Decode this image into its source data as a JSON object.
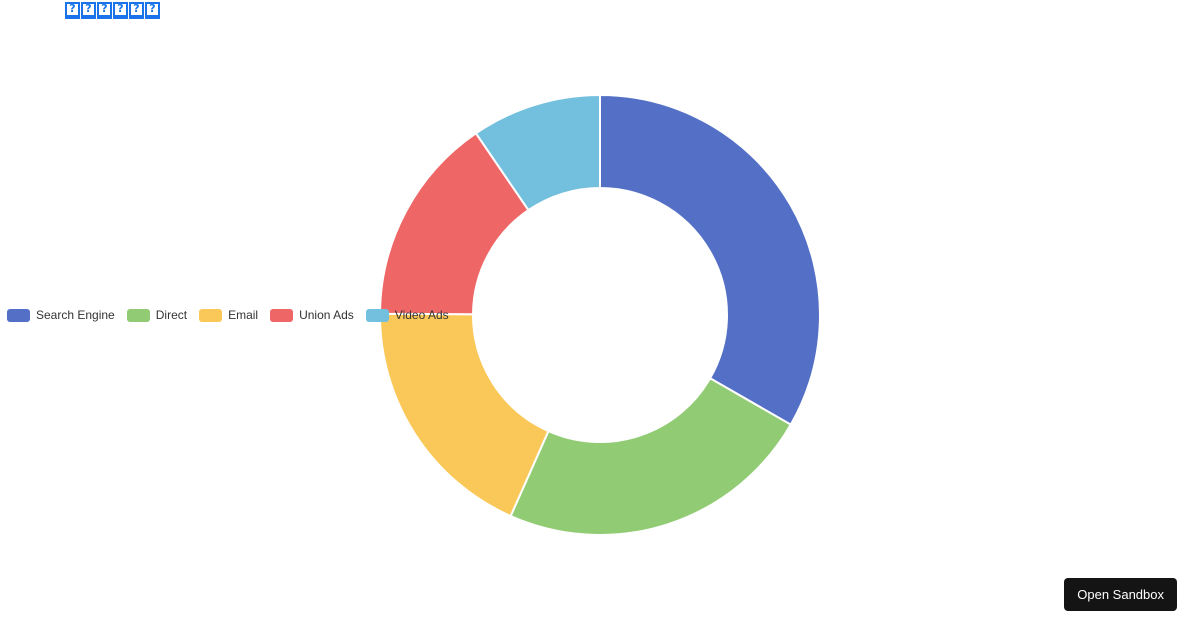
{
  "title_glyph_count": 6,
  "chart_data": {
    "type": "pie",
    "variant": "donut",
    "categories": [
      "Search Engine",
      "Direct",
      "Email",
      "Union Ads",
      "Video Ads"
    ],
    "values": [
      1048,
      735,
      580,
      484,
      300
    ],
    "colors": [
      "#5470c6",
      "#91cc75",
      "#fac858",
      "#ee6666",
      "#73c0de"
    ],
    "legend_placement": "left-middle"
  },
  "sandbox": {
    "label": "Open Sandbox"
  }
}
